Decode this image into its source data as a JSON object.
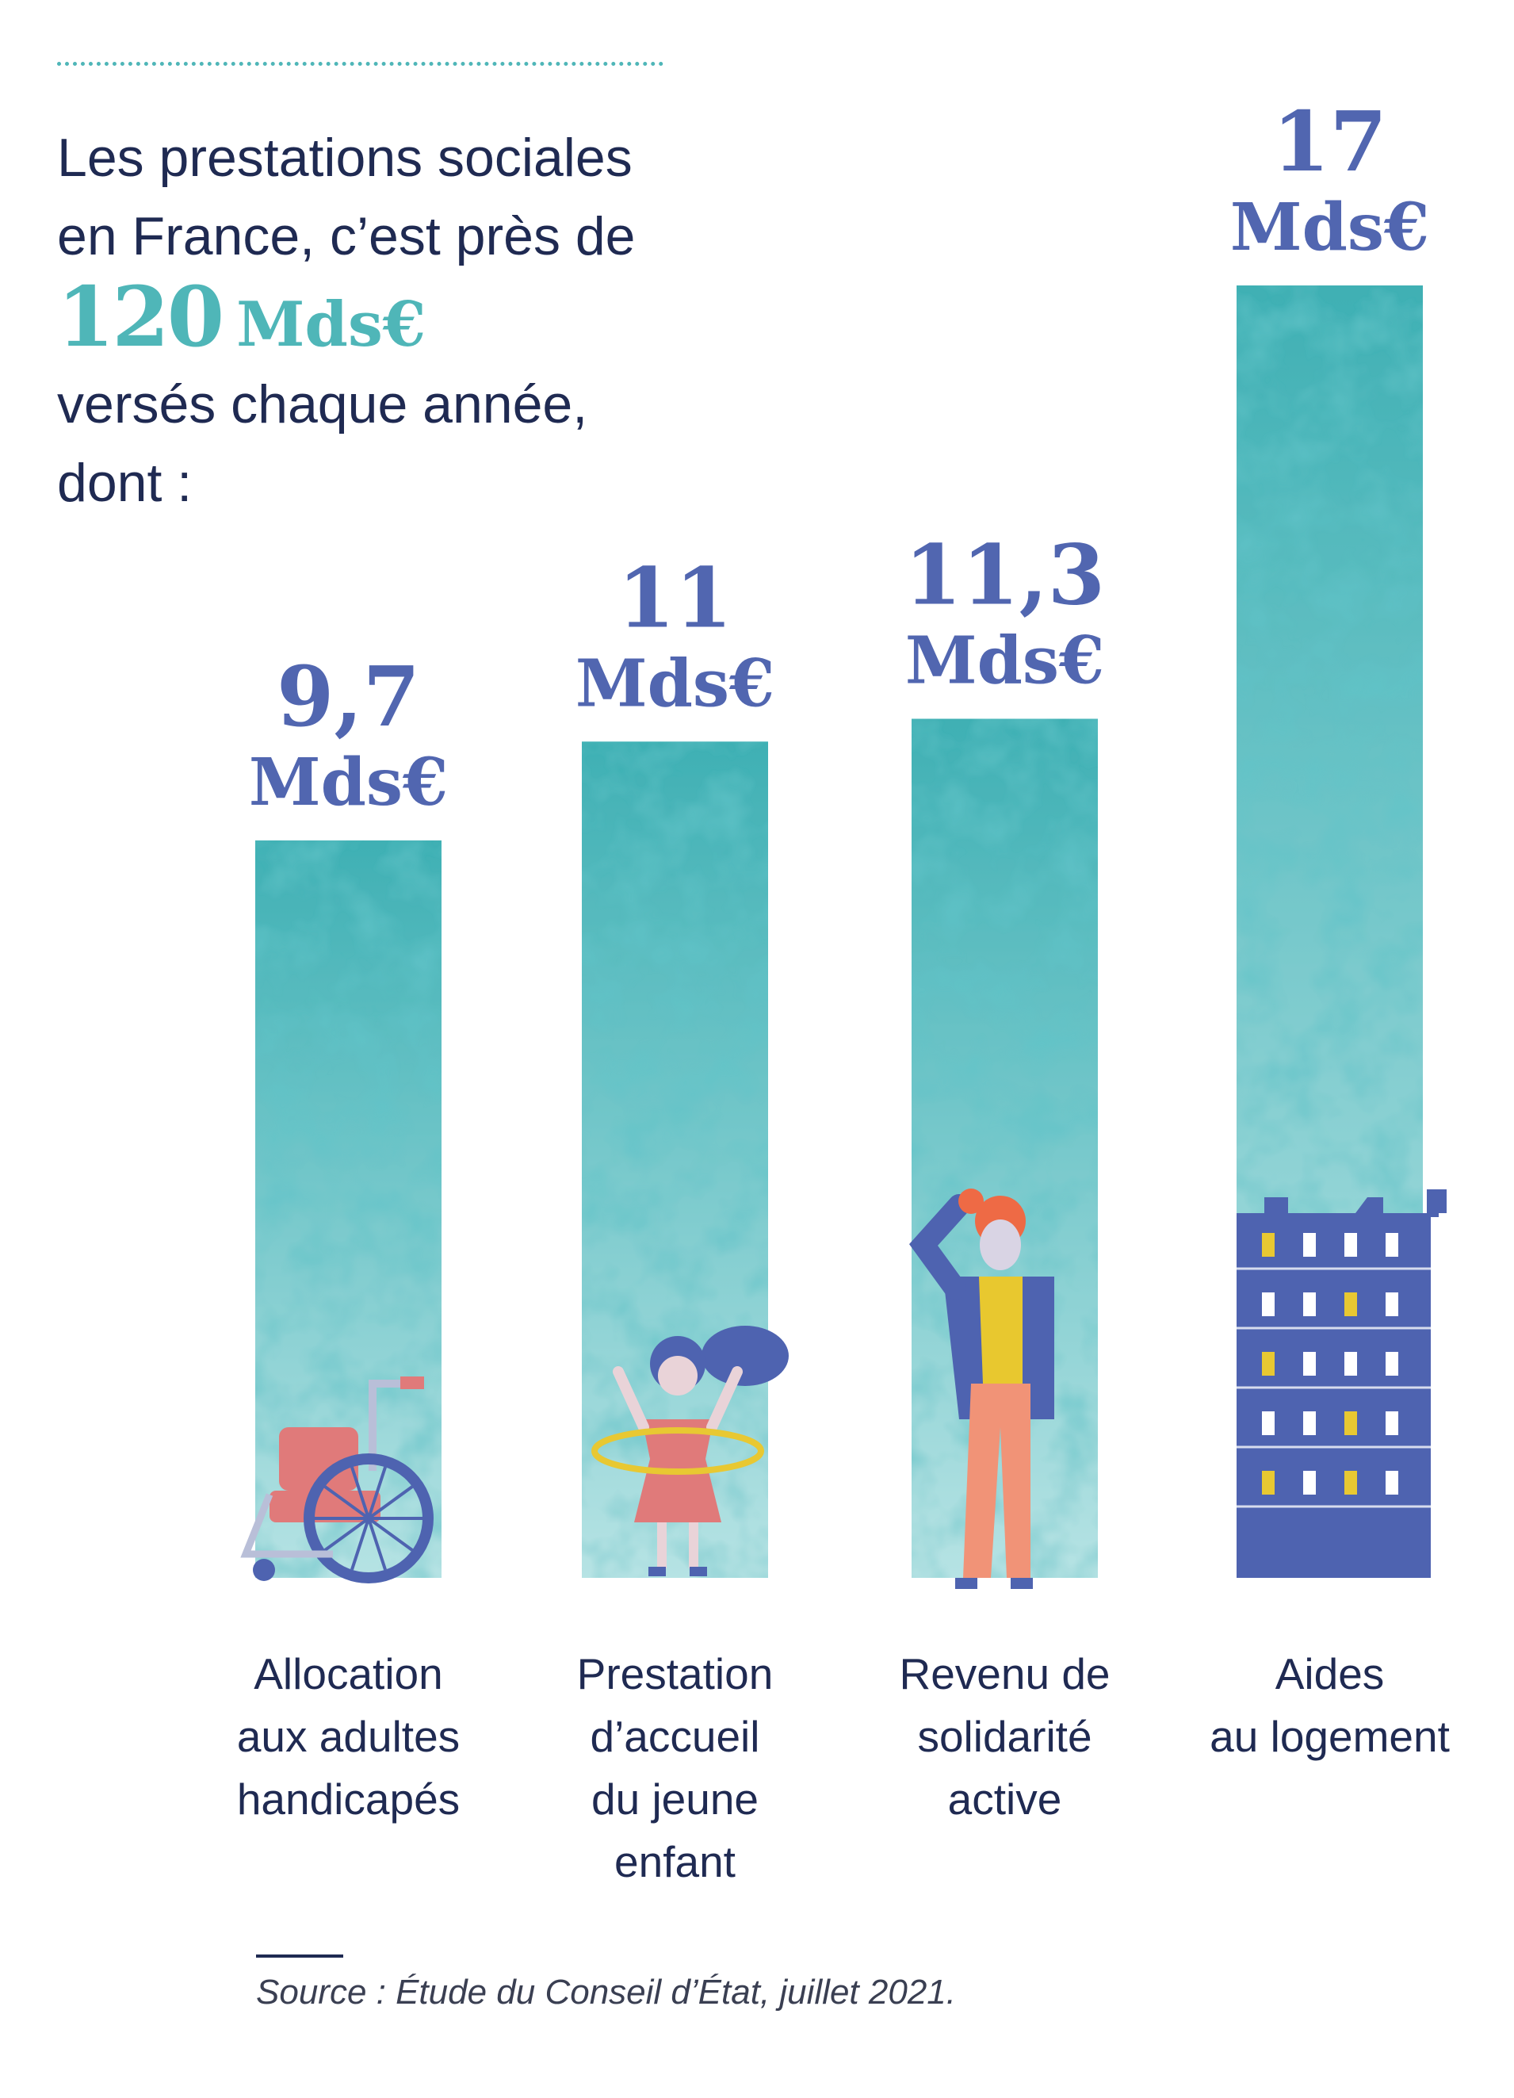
{
  "intro": {
    "line1": "Les prestations sociales",
    "line2": "en France, c’est près de",
    "total_number": "120",
    "total_unit": "Mds€",
    "line3": "versés chaque année,",
    "line4": "dont :"
  },
  "source": "Source : Étude du Conseil d’État, juillet 2021.",
  "colors": {
    "bar": "#7fcdcf",
    "bar_dark": "#2fa3a9",
    "value_text": "#5166b0",
    "accent": "#4fb6b8",
    "text": "#1f2a52"
  },
  "chart_data": {
    "type": "bar",
    "unit": "Mds€",
    "categories": [
      "Allocation aux adultes handicapés",
      "Prestation d’accueil du jeune enfant",
      "Revenu de solidarité active",
      "Aides au logement"
    ],
    "category_lines": [
      [
        "Allocation",
        "aux adultes",
        "handicapés"
      ],
      [
        "Prestation",
        "d’accueil",
        "du jeune",
        "enfant"
      ],
      [
        "Revenu de",
        "solidarité",
        "active"
      ],
      [
        "Aides",
        "au logement"
      ]
    ],
    "values": [
      9.7,
      11,
      11.3,
      17
    ],
    "value_labels": [
      "9,7",
      "11",
      "11,3",
      "17"
    ],
    "icons": [
      "wheelchair-icon",
      "child-hula-hoop-icon",
      "person-thinking-icon",
      "apartment-building-icon"
    ]
  }
}
